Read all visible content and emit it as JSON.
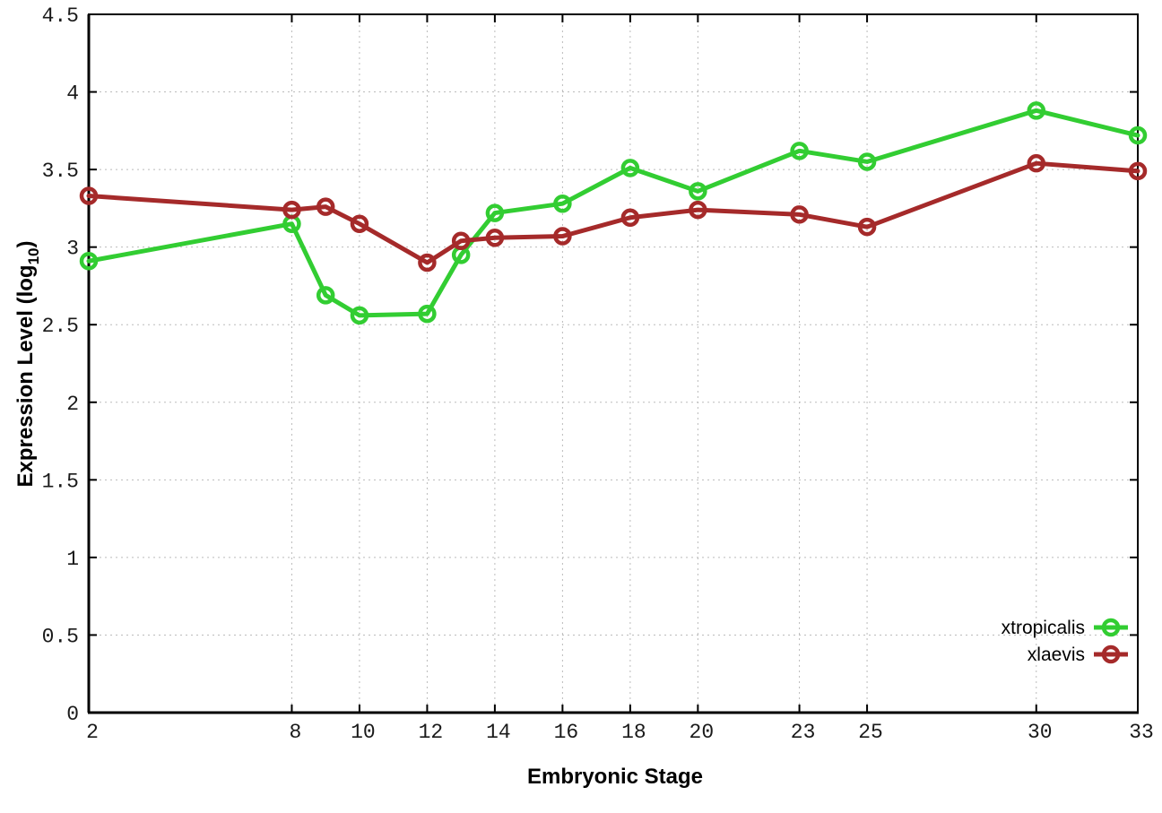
{
  "chart_data": {
    "type": "line",
    "title": "",
    "xlabel": "Embryonic Stage",
    "ylabel": {
      "prefix": "Expression Level (log",
      "subscript": "10",
      "suffix": ")"
    },
    "x": [
      2,
      8,
      9,
      10,
      12,
      13,
      14,
      16,
      18,
      20,
      23,
      25,
      30,
      33
    ],
    "xlim": [
      2,
      33
    ],
    "ylim": [
      0,
      4.5
    ],
    "xticks": {
      "values": [
        2,
        8,
        10,
        12,
        14,
        16,
        18,
        20,
        23,
        25,
        30,
        33
      ],
      "labels": [
        "2",
        "8",
        "10",
        "12",
        "14",
        "16",
        "18",
        "20",
        "23",
        "25",
        "30",
        "33"
      ]
    },
    "yticks": {
      "values": [
        0,
        0.5,
        1,
        1.5,
        2,
        2.5,
        3,
        3.5,
        4,
        4.5
      ],
      "labels": [
        "0",
        "0.5",
        "1",
        "1.5",
        "2",
        "2.5",
        "3",
        "3.5",
        "4",
        "4.5"
      ]
    },
    "grid": "dotted",
    "legend_position": "bottom-right-inside",
    "series": [
      {
        "name": "xtropicalis",
        "color": "#32cd32",
        "marker": "open-circle",
        "values": [
          2.91,
          3.15,
          2.69,
          2.56,
          2.57,
          2.95,
          3.22,
          3.28,
          3.51,
          3.36,
          3.62,
          3.55,
          3.88,
          3.72
        ]
      },
      {
        "name": "xlaevis",
        "color": "#a52a2a",
        "marker": "open-circle",
        "values": [
          3.33,
          3.24,
          3.26,
          3.15,
          2.9,
          3.04,
          3.06,
          3.07,
          3.19,
          3.24,
          3.21,
          3.13,
          3.54,
          3.49
        ]
      }
    ],
    "colors": {
      "background": "#ffffff",
      "axis": "#000000",
      "grid": "#bbbbbb",
      "text": "#1a1a1a"
    }
  }
}
